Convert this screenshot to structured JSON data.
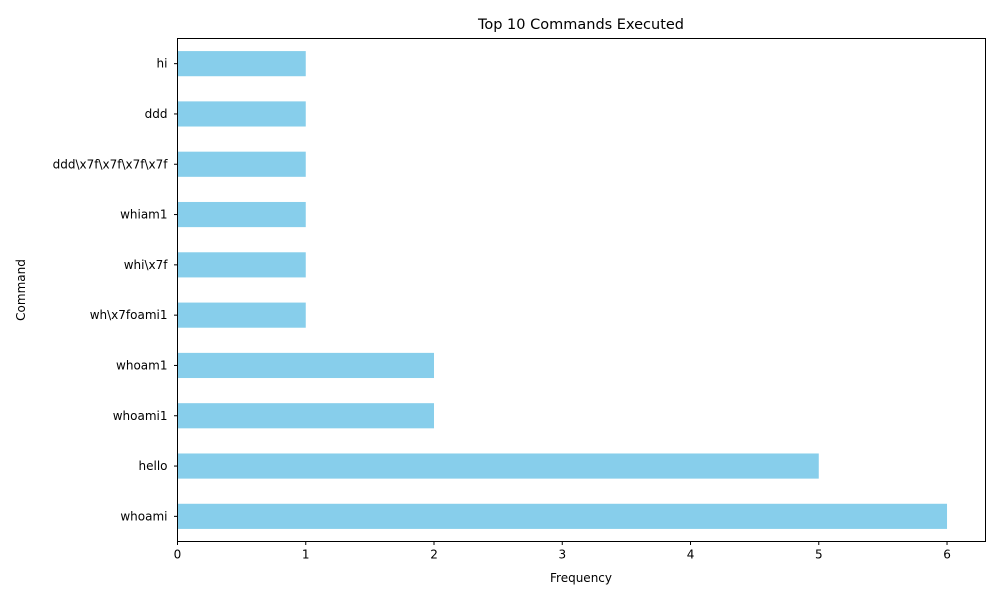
{
  "chart_data": {
    "type": "bar",
    "orientation": "horizontal",
    "title": "Top 10 Commands Executed",
    "xlabel": "Frequency",
    "ylabel": "Command",
    "categories": [
      "whoami",
      "hello",
      "whoami1",
      "whoam1",
      "wh\\x7foami1",
      "whi\\x7f",
      "whiam1",
      "ddd\\x7f\\x7f\\x7f\\x7f",
      "ddd",
      "hi"
    ],
    "values": [
      6,
      5,
      2,
      2,
      1,
      1,
      1,
      1,
      1,
      1
    ],
    "xlim": [
      0,
      6.3
    ],
    "xticks": [
      0,
      1,
      2,
      3,
      4,
      5,
      6
    ],
    "bar_color": "#87ceeb",
    "grid": false,
    "legend": "none"
  }
}
